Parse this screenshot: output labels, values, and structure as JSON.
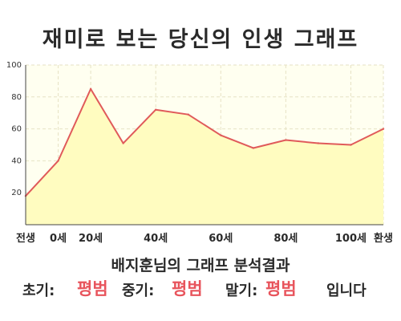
{
  "title": "재미로 보는 당신의 인생 그래프",
  "chart_data": {
    "type": "area",
    "x_ticks": [
      "전생",
      "0세",
      "20세",
      "40세",
      "60세",
      "80세",
      "100세",
      "환생"
    ],
    "y_ticks": [
      "20",
      "40",
      "60",
      "80",
      "100"
    ],
    "ylim": [
      0,
      100
    ],
    "grid": true,
    "values": [
      {
        "x": "전생",
        "y": 18
      },
      {
        "x": "0세",
        "y": 40
      },
      {
        "x": "20세",
        "y": 85
      },
      {
        "x": "30세",
        "y": 51
      },
      {
        "x": "40세",
        "y": 72
      },
      {
        "x": "50세",
        "y": 69
      },
      {
        "x": "60세",
        "y": 56
      },
      {
        "x": "70세",
        "y": 48
      },
      {
        "x": "80세",
        "y": 53
      },
      {
        "x": "90세",
        "y": 51
      },
      {
        "x": "100세",
        "y": 50
      },
      {
        "x": "환생",
        "y": 60
      }
    ],
    "colors": {
      "line": "#e05a5a",
      "fill": "#fffcc0",
      "plot_bg": "#fffff0",
      "grid": "#e6e2c4"
    }
  },
  "result": {
    "subtitle": "배지훈님의 그래프 분석결과",
    "early_label": "초기:",
    "early_value": "평범",
    "middle_label": "중기:",
    "middle_value": "평범",
    "late_label": "말기:",
    "late_value": "평범",
    "suffix": "입니다"
  }
}
